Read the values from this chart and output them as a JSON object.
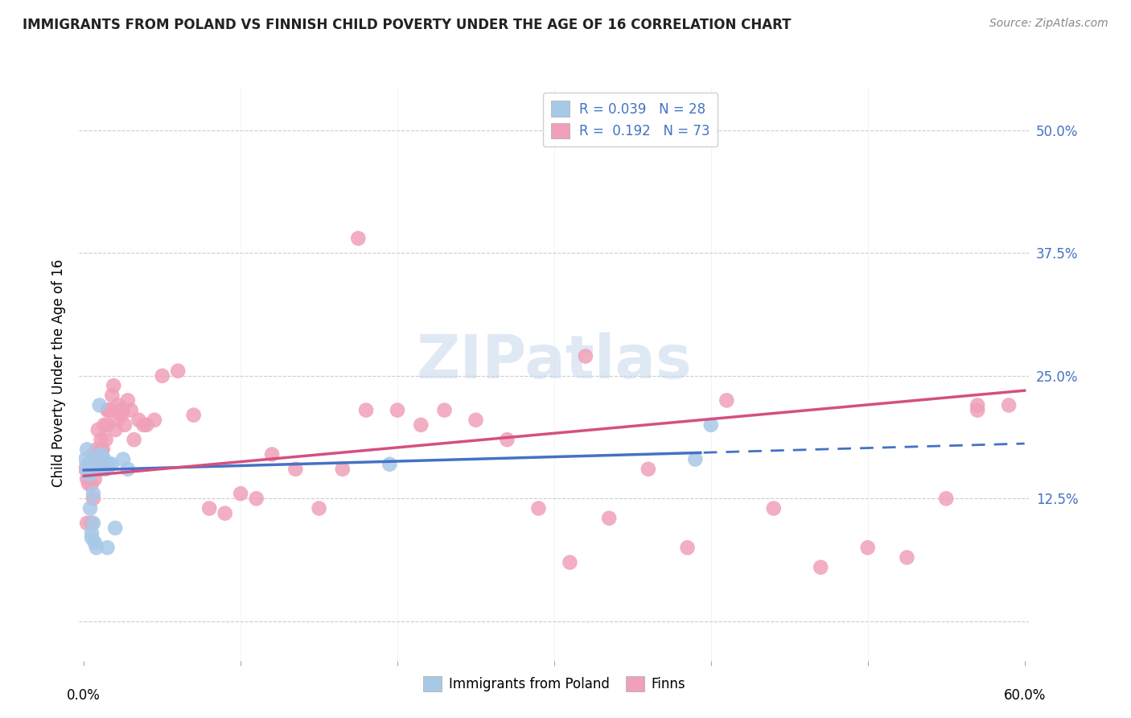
{
  "title": "IMMIGRANTS FROM POLAND VS FINNISH CHILD POVERTY UNDER THE AGE OF 16 CORRELATION CHART",
  "source": "Source: ZipAtlas.com",
  "ylabel": "Child Poverty Under the Age of 16",
  "ytick_vals": [
    0.0,
    0.125,
    0.25,
    0.375,
    0.5
  ],
  "ytick_labels": [
    "",
    "12.5%",
    "25.0%",
    "37.5%",
    "50.0%"
  ],
  "xlim": [
    0.0,
    0.6
  ],
  "ylim": [
    -0.04,
    0.545
  ],
  "blue_color": "#a8c8e8",
  "pink_color": "#f0a0b8",
  "blue_line_color": "#4472c4",
  "pink_line_color": "#d45080",
  "watermark": "ZIPatlas",
  "legend_r1": "R = 0.039   N = 28",
  "legend_r2": "R =  0.192   N = 73",
  "poland_x": [
    0.001,
    0.002,
    0.002,
    0.003,
    0.003,
    0.004,
    0.004,
    0.005,
    0.005,
    0.006,
    0.006,
    0.007,
    0.008,
    0.009,
    0.01,
    0.011,
    0.012,
    0.013,
    0.014,
    0.015,
    0.016,
    0.018,
    0.02,
    0.025,
    0.028,
    0.195,
    0.39,
    0.4
  ],
  "poland_y": [
    0.165,
    0.155,
    0.175,
    0.15,
    0.16,
    0.115,
    0.15,
    0.09,
    0.085,
    0.1,
    0.13,
    0.08,
    0.075,
    0.165,
    0.22,
    0.17,
    0.155,
    0.165,
    0.155,
    0.075,
    0.16,
    0.16,
    0.095,
    0.165,
    0.155,
    0.16,
    0.165,
    0.2
  ],
  "finns_x": [
    0.001,
    0.002,
    0.002,
    0.003,
    0.004,
    0.005,
    0.005,
    0.006,
    0.006,
    0.007,
    0.007,
    0.008,
    0.009,
    0.009,
    0.01,
    0.011,
    0.011,
    0.012,
    0.013,
    0.014,
    0.015,
    0.015,
    0.016,
    0.017,
    0.018,
    0.019,
    0.02,
    0.021,
    0.022,
    0.023,
    0.024,
    0.025,
    0.026,
    0.028,
    0.03,
    0.032,
    0.035,
    0.038,
    0.04,
    0.045,
    0.05,
    0.06,
    0.07,
    0.08,
    0.09,
    0.1,
    0.11,
    0.12,
    0.135,
    0.15,
    0.165,
    0.18,
    0.2,
    0.215,
    0.23,
    0.25,
    0.27,
    0.29,
    0.31,
    0.335,
    0.36,
    0.385,
    0.41,
    0.44,
    0.47,
    0.5,
    0.525,
    0.55,
    0.57,
    0.59,
    0.175,
    0.32,
    0.57
  ],
  "finns_y": [
    0.155,
    0.1,
    0.145,
    0.14,
    0.155,
    0.1,
    0.14,
    0.125,
    0.17,
    0.145,
    0.165,
    0.175,
    0.155,
    0.195,
    0.16,
    0.175,
    0.185,
    0.175,
    0.2,
    0.185,
    0.2,
    0.215,
    0.215,
    0.215,
    0.23,
    0.24,
    0.195,
    0.205,
    0.22,
    0.215,
    0.21,
    0.215,
    0.2,
    0.225,
    0.215,
    0.185,
    0.205,
    0.2,
    0.2,
    0.205,
    0.25,
    0.255,
    0.21,
    0.115,
    0.11,
    0.13,
    0.125,
    0.17,
    0.155,
    0.115,
    0.155,
    0.215,
    0.215,
    0.2,
    0.215,
    0.205,
    0.185,
    0.115,
    0.06,
    0.105,
    0.155,
    0.075,
    0.225,
    0.115,
    0.055,
    0.075,
    0.065,
    0.125,
    0.215,
    0.22,
    0.39,
    0.27,
    0.22
  ]
}
